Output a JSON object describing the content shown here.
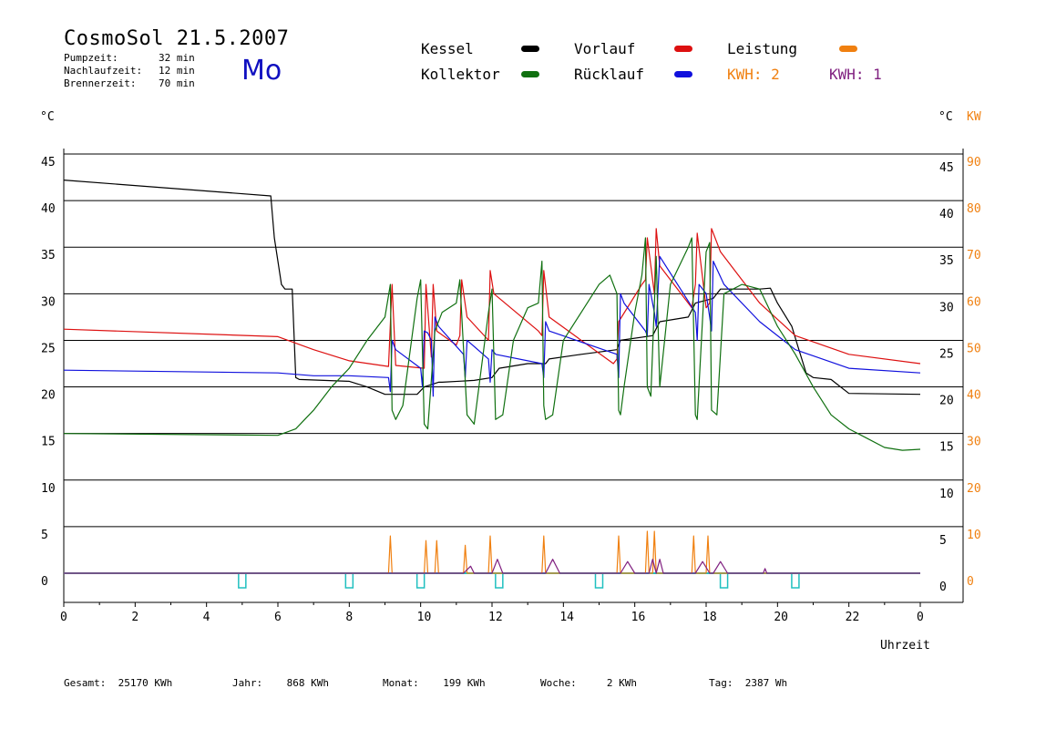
{
  "header": {
    "title": "CosmoSol 21.5.2007",
    "day": "Mo",
    "info": [
      {
        "label": "Pumpzeit:",
        "value": "32 min"
      },
      {
        "label": "Nachlaufzeit:",
        "value": "12 min"
      },
      {
        "label": "Brennerzeit:",
        "value": "70 min"
      }
    ]
  },
  "legend": [
    {
      "name": "Kessel",
      "color": "#000000"
    },
    {
      "name": "Vorlauf",
      "color": "#dd1010"
    },
    {
      "name": "Leistung",
      "color": "#f08010"
    },
    {
      "name": "Kollektor",
      "color": "#107010"
    },
    {
      "name": "Rücklauf",
      "color": "#1010dd"
    },
    {
      "name": "KWH: 2",
      "color": "#f08010"
    },
    {
      "name": "KWH: 1",
      "color": "#802080"
    }
  ],
  "axes": {
    "left_unit": "°C",
    "right_unit": "°C",
    "right_unit2": "KW",
    "xlabel": "Uhrzeit",
    "x_ticks": [
      "0",
      "2",
      "4",
      "6",
      "8",
      "10",
      "12",
      "14",
      "16",
      "18",
      "20",
      "22",
      "0"
    ],
    "y_ticks": [
      "0",
      "5",
      "10",
      "15",
      "20",
      "25",
      "30",
      "35",
      "40",
      "45"
    ],
    "kw_ticks": [
      "0",
      "10",
      "20",
      "30",
      "40",
      "50",
      "60",
      "70",
      "80",
      "90"
    ]
  },
  "footer": [
    {
      "label": "Gesamt:",
      "value": "25170 KWh"
    },
    {
      "label": "Jahr:",
      "value": "868 KWh"
    },
    {
      "label": "Monat:",
      "value": "199 KWh"
    },
    {
      "label": "Woche:",
      "value": "2 KWh"
    },
    {
      "label": "Tag:",
      "value": "2387 Wh"
    }
  ],
  "chart_data": {
    "type": "line",
    "xlim": [
      0,
      24
    ],
    "ylim": [
      0,
      45
    ],
    "y2lim": [
      0,
      90
    ],
    "grid": true,
    "legend_position": "top",
    "series": [
      {
        "name": "Kessel",
        "color": "#000000",
        "x": [
          0,
          5.8,
          5.9,
          6.1,
          6.2,
          6.4,
          6.5,
          6.6,
          8.0,
          8.5,
          9.0,
          9.9,
          10.1,
          10.5,
          10.6,
          11.5,
          12.0,
          12.2,
          13.0,
          13.5,
          13.6,
          14.5,
          15.5,
          15.6,
          16.5,
          16.7,
          17.5,
          17.7,
          18.2,
          18.4,
          18.7,
          19.5,
          19.8,
          20.0,
          20.4,
          20.6,
          20.8,
          21.0,
          21.5,
          21.7,
          22.0,
          24.0
        ],
        "y": [
          42.2,
          40.5,
          36.0,
          31.0,
          30.5,
          30.5,
          21.0,
          20.8,
          20.6,
          20.0,
          19.2,
          19.2,
          20.0,
          20.5,
          20.5,
          20.7,
          21.0,
          22.0,
          22.5,
          22.5,
          23.0,
          23.5,
          24.0,
          25.0,
          25.5,
          27.0,
          27.5,
          29.0,
          29.5,
          30.5,
          30.5,
          30.5,
          30.6,
          29.0,
          26.5,
          24.0,
          21.5,
          21.0,
          20.8,
          20.2,
          19.3,
          19.2
        ]
      },
      {
        "name": "Vorlauf",
        "color": "#dd1010",
        "x": [
          0,
          6.0,
          7.0,
          8.0,
          9.1,
          9.2,
          9.3,
          10.1,
          10.15,
          10.3,
          10.35,
          10.45,
          11.0,
          11.1,
          11.15,
          11.3,
          11.9,
          11.95,
          12.05,
          13.3,
          13.4,
          13.45,
          13.6,
          15.4,
          15.5,
          15.55,
          16.2,
          16.3,
          16.35,
          16.55,
          16.6,
          16.7,
          17.6,
          17.7,
          17.75,
          18.0,
          18.1,
          18.15,
          18.4,
          19.5,
          20.5,
          22.0,
          24.0
        ],
        "y": [
          26.2,
          25.4,
          24.0,
          22.8,
          22.2,
          31.0,
          22.3,
          22.0,
          31.0,
          23.2,
          31.0,
          26.0,
          24.5,
          25.5,
          31.5,
          27.5,
          25.0,
          32.5,
          30.0,
          26.0,
          25.5,
          32.5,
          27.5,
          22.5,
          23.0,
          27.0,
          31.0,
          31.5,
          36.0,
          30.0,
          37.0,
          33.0,
          28.5,
          31.0,
          36.5,
          28.5,
          29.0,
          37.0,
          34.5,
          29.0,
          25.5,
          23.5,
          22.5
        ]
      },
      {
        "name": "Rücklauf",
        "color": "#1010dd",
        "x": [
          0,
          6.0,
          7.0,
          8.0,
          9.1,
          9.15,
          9.2,
          9.3,
          10.0,
          10.05,
          10.1,
          10.2,
          10.3,
          10.35,
          10.4,
          10.5,
          11.2,
          11.25,
          11.3,
          11.9,
          11.95,
          12.0,
          12.1,
          13.4,
          13.45,
          13.5,
          13.6,
          15.5,
          15.55,
          15.6,
          15.7,
          16.3,
          16.35,
          16.4,
          16.55,
          16.6,
          16.7,
          17.7,
          17.75,
          17.8,
          18.0,
          18.1,
          18.15,
          18.2,
          18.5,
          19.5,
          20.5,
          22.0,
          24.0
        ],
        "y": [
          21.8,
          21.5,
          21.2,
          21.2,
          21.0,
          19.5,
          25.0,
          24.0,
          22.0,
          20.0,
          26.0,
          25.8,
          25.0,
          19.0,
          27.5,
          26.5,
          23.5,
          21.0,
          25.0,
          23.0,
          20.5,
          24.0,
          23.5,
          22.5,
          21.0,
          27.0,
          26.0,
          23.5,
          21.0,
          30.0,
          29.0,
          26.0,
          25.5,
          31.0,
          28.0,
          26.5,
          34.0,
          28.0,
          25.0,
          31.0,
          30.0,
          27.5,
          26.0,
          33.5,
          31.0,
          27.0,
          24.0,
          22.0,
          21.5
        ]
      },
      {
        "name": "Kollektor",
        "color": "#107010",
        "x": [
          0,
          6.0,
          6.5,
          7.0,
          7.5,
          8.0,
          8.5,
          9.0,
          9.15,
          9.2,
          9.3,
          9.5,
          9.9,
          10.0,
          10.1,
          10.2,
          10.4,
          10.6,
          11.0,
          11.1,
          11.3,
          11.5,
          11.9,
          12.0,
          12.1,
          12.3,
          12.6,
          13.0,
          13.3,
          13.4,
          13.45,
          13.5,
          13.7,
          14.0,
          14.5,
          15.0,
          15.3,
          15.5,
          15.55,
          15.6,
          15.7,
          16.0,
          16.2,
          16.3,
          16.35,
          16.45,
          16.6,
          16.7,
          17.0,
          17.5,
          17.6,
          17.7,
          17.75,
          18.0,
          18.1,
          18.15,
          18.3,
          18.5,
          19.0,
          19.5,
          20.0,
          20.5,
          21.0,
          21.5,
          22.0,
          22.5,
          23.0,
          23.5,
          24.0
        ],
        "y": [
          15.0,
          14.8,
          15.5,
          17.5,
          20.0,
          22.0,
          25.0,
          27.5,
          31.0,
          17.5,
          16.5,
          18.0,
          29.5,
          31.5,
          16.0,
          15.5,
          26.0,
          28.0,
          29.0,
          31.5,
          17.0,
          16.0,
          28.0,
          30.5,
          16.5,
          17.0,
          25.0,
          28.5,
          29.0,
          33.5,
          18.0,
          16.5,
          17.0,
          25.0,
          28.0,
          31.0,
          32.0,
          30.0,
          17.5,
          17.0,
          20.0,
          28.0,
          32.0,
          36.0,
          20.0,
          19.0,
          34.0,
          20.0,
          31.0,
          35.0,
          36.0,
          17.0,
          16.5,
          34.5,
          35.5,
          17.5,
          17.0,
          30.0,
          31.0,
          30.5,
          26.5,
          23.5,
          20.0,
          17.0,
          15.5,
          14.5,
          13.5,
          13.2,
          13.3
        ]
      },
      {
        "name": "Leistung",
        "color": "#f08010",
        "axis": "y2",
        "x": [
          0,
          9.1,
          9.15,
          9.2,
          10.1,
          10.15,
          10.2,
          10.4,
          10.45,
          10.5,
          11.2,
          11.25,
          11.3,
          11.9,
          11.95,
          12.0,
          13.4,
          13.45,
          13.5,
          15.5,
          15.55,
          15.6,
          16.3,
          16.35,
          16.4,
          16.5,
          16.55,
          16.6,
          17.6,
          17.65,
          17.7,
          18.0,
          18.05,
          18.1,
          24.0
        ],
        "y": [
          0,
          0,
          8,
          0,
          0,
          7,
          0,
          0,
          7,
          0,
          0,
          6,
          0,
          0,
          8,
          0,
          0,
          8,
          0,
          0,
          8,
          0,
          0,
          9,
          0,
          0,
          9,
          0,
          0,
          8,
          0,
          0,
          8,
          0,
          0
        ]
      },
      {
        "name": "KWH: 1",
        "color": "#802080",
        "axis": "y2",
        "x": [
          0,
          11.2,
          11.4,
          11.5,
          11.6,
          12.0,
          12.15,
          12.3,
          13.5,
          13.7,
          13.9,
          15.6,
          15.8,
          16.0,
          16.4,
          16.5,
          16.6,
          16.7,
          16.8,
          17.7,
          17.9,
          18.1,
          18.2,
          18.4,
          18.6,
          19.6,
          19.65,
          19.7,
          24.0
        ],
        "y": [
          0,
          0,
          1.5,
          0,
          0,
          0,
          3,
          0,
          0,
          3,
          0,
          0,
          2.5,
          0,
          0,
          3,
          0,
          3,
          0,
          0,
          2.5,
          0,
          0,
          2.5,
          0,
          0,
          1,
          0,
          0
        ]
      }
    ],
    "markers": {
      "color": "#20c0c0",
      "x": [
        5.0,
        8.0,
        10.0,
        12.2,
        15.0,
        18.5,
        20.5
      ]
    }
  }
}
